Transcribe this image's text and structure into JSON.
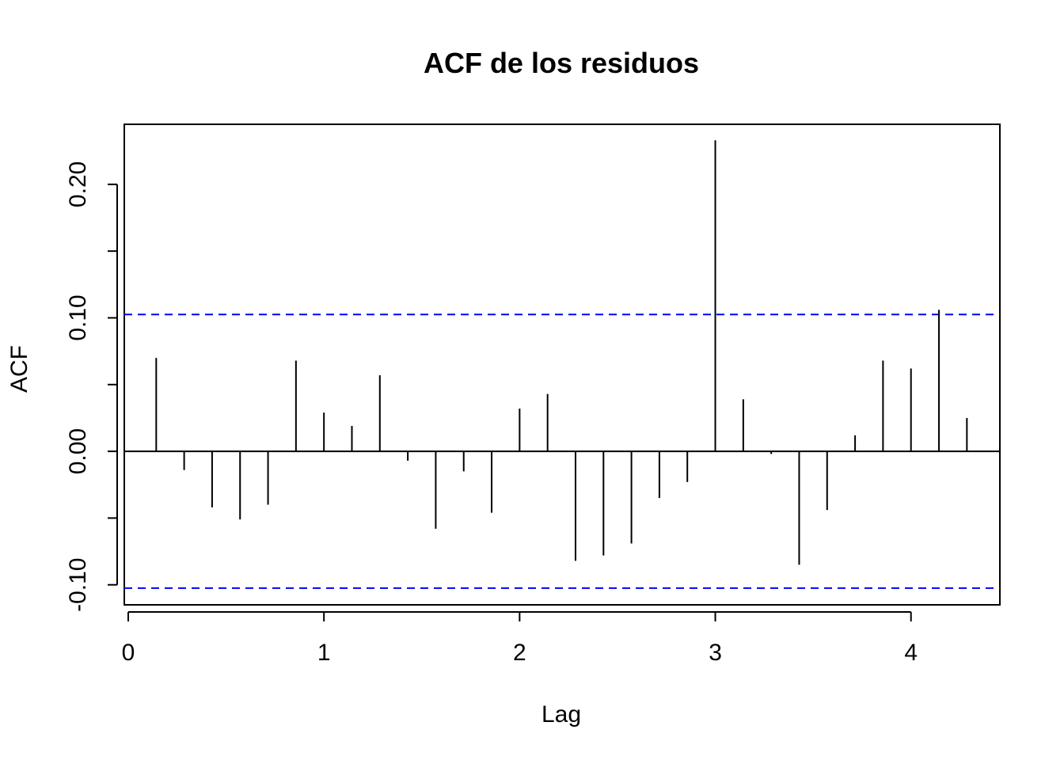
{
  "chart_data": {
    "type": "bar",
    "subtype": "acf-stem",
    "title": "ACF de los residuos",
    "xlabel": "Lag",
    "ylabel": "ACF",
    "xlim": [
      0,
      4.43
    ],
    "ylim": [
      -0.115,
      0.245
    ],
    "x_ticks": [
      0,
      1,
      2,
      3,
      4
    ],
    "x_tick_labels": [
      "0",
      "1",
      "2",
      "3",
      "4"
    ],
    "y_ticks": [
      -0.1,
      -0.05,
      0.0,
      0.05,
      0.1,
      0.15,
      0.2
    ],
    "y_tick_labels": [
      "-0.10",
      "",
      "0.00",
      "",
      "0.10",
      "",
      "0.20"
    ],
    "confidence_band": [
      0.1025,
      -0.1025
    ],
    "confidence_color": "#0000ff",
    "zero_line": 0,
    "grid": false,
    "series": [
      {
        "x": [
          0.1429,
          0.2857,
          0.4286,
          0.5714,
          0.7143,
          0.8571,
          1.0,
          1.1429,
          1.2857,
          1.4286,
          1.5714,
          1.7143,
          1.8571,
          2.0,
          2.1429,
          2.2857,
          2.4286,
          2.5714,
          2.7143,
          2.8571,
          3.0,
          3.1429,
          3.2857,
          3.4286,
          3.5714,
          3.7143,
          3.8571,
          4.0,
          4.1429,
          4.2857
        ],
        "values": [
          0.07,
          -0.014,
          -0.042,
          -0.051,
          -0.04,
          0.068,
          0.029,
          0.019,
          0.057,
          -0.007,
          -0.058,
          -0.015,
          -0.046,
          0.032,
          0.043,
          -0.082,
          -0.078,
          -0.069,
          -0.035,
          -0.023,
          0.233,
          0.039,
          -0.002,
          -0.085,
          -0.044,
          0.012,
          0.068,
          0.062,
          0.106,
          0.025
        ]
      }
    ]
  }
}
